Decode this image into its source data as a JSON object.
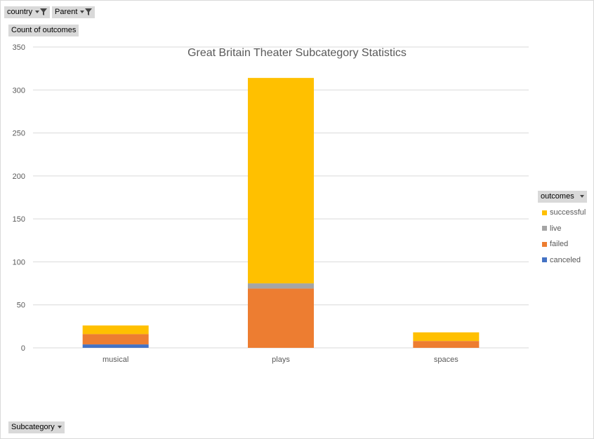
{
  "filters": {
    "country": {
      "label": "country",
      "icon": "filter-icon"
    },
    "parent": {
      "label": "Parent",
      "icon": "filter-icon"
    }
  },
  "value_field": {
    "label": "Count of outcomes"
  },
  "axis_field": {
    "label": "Subcategory",
    "icon": "dropdown-arrow-icon"
  },
  "legend": {
    "title": "outcomes",
    "icon": "dropdown-arrow-icon"
  },
  "chart_data": {
    "type": "bar",
    "stacked": true,
    "title": "Great Britain Theater Subcategory Statistics",
    "categories": [
      "musical",
      "plays",
      "spaces"
    ],
    "series": [
      {
        "name": "canceled",
        "values": [
          4,
          0,
          0
        ],
        "color": "#4472c4"
      },
      {
        "name": "failed",
        "values": [
          12,
          69,
          8
        ],
        "color": "#ed7d31"
      },
      {
        "name": "live",
        "values": [
          0,
          6,
          0
        ],
        "color": "#a5a5a5"
      },
      {
        "name": "successful",
        "values": [
          10,
          239,
          10
        ],
        "color": "#ffc000"
      }
    ],
    "ylim": [
      0,
      350
    ],
    "yticks": [
      0,
      50,
      100,
      150,
      200,
      250,
      300,
      350
    ],
    "grid": true,
    "legend_position": "right"
  }
}
